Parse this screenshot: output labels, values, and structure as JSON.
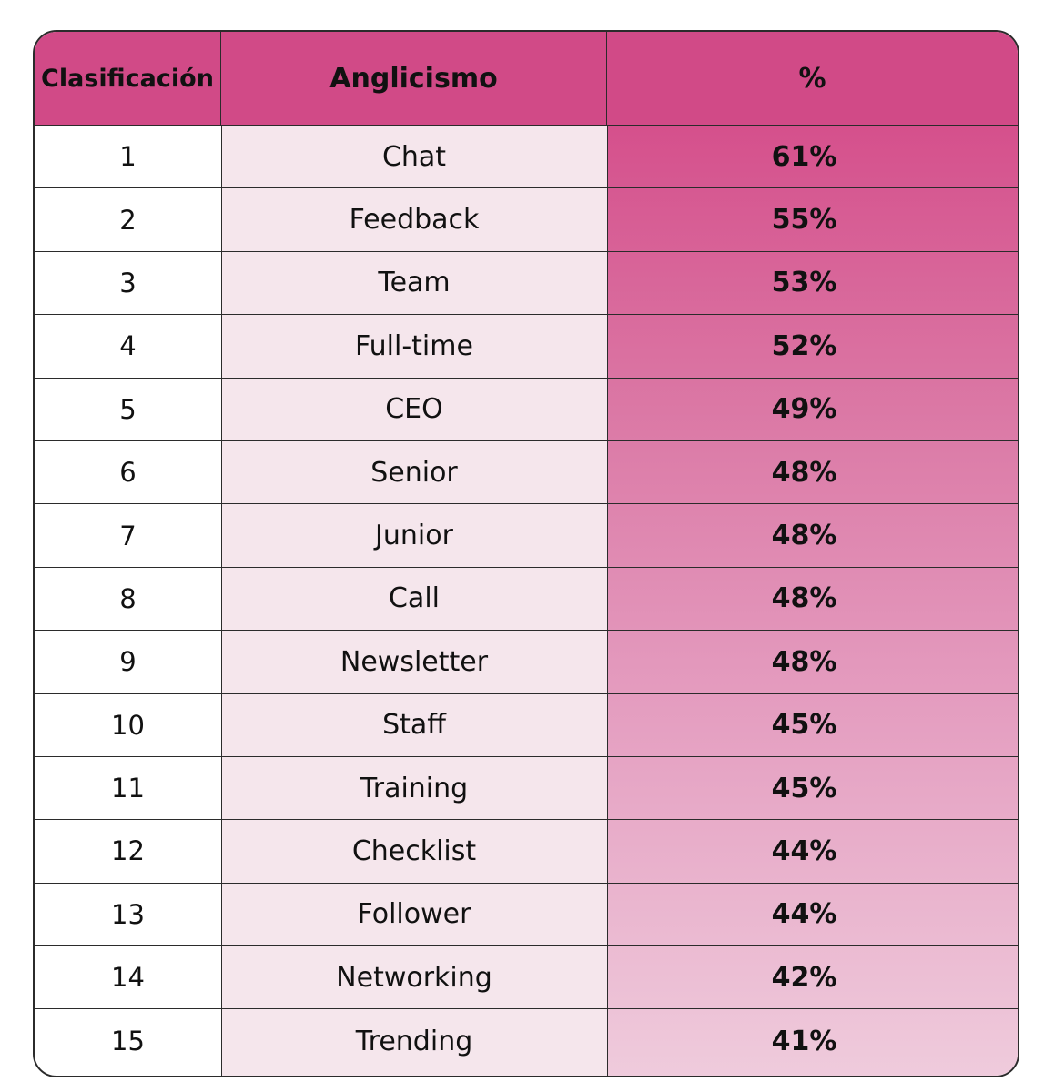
{
  "chart_data": {
    "type": "table",
    "columns": [
      "Clasificación",
      "Anglicismo",
      "%"
    ],
    "rows": [
      {
        "rank": "1",
        "word": "Chat",
        "pct": "61%"
      },
      {
        "rank": "2",
        "word": "Feedback",
        "pct": "55%"
      },
      {
        "rank": "3",
        "word": "Team",
        "pct": "53%"
      },
      {
        "rank": "4",
        "word": "Full-time",
        "pct": "52%"
      },
      {
        "rank": "5",
        "word": "CEO",
        "pct": "49%"
      },
      {
        "rank": "6",
        "word": "Senior",
        "pct": "48%"
      },
      {
        "rank": "7",
        "word": "Junior",
        "pct": "48%"
      },
      {
        "rank": "8",
        "word": "Call",
        "pct": "48%"
      },
      {
        "rank": "9",
        "word": "Newsletter",
        "pct": "48%"
      },
      {
        "rank": "10",
        "word": "Staff",
        "pct": "45%"
      },
      {
        "rank": "11",
        "word": "Training",
        "pct": "45%"
      },
      {
        "rank": "12",
        "word": "Checklist",
        "pct": "44%"
      },
      {
        "rank": "13",
        "word": "Follower",
        "pct": "44%"
      },
      {
        "rank": "14",
        "word": "Networking",
        "pct": "42%"
      },
      {
        "rank": "15",
        "word": "Trending",
        "pct": "41%"
      }
    ]
  },
  "colors": {
    "header": "#d14a87",
    "word_column": "#f5e6ec",
    "pct_gradient_top": "#d5508c",
    "pct_gradient_bottom": "#efcbdc",
    "border": "#2b2b2b"
  }
}
